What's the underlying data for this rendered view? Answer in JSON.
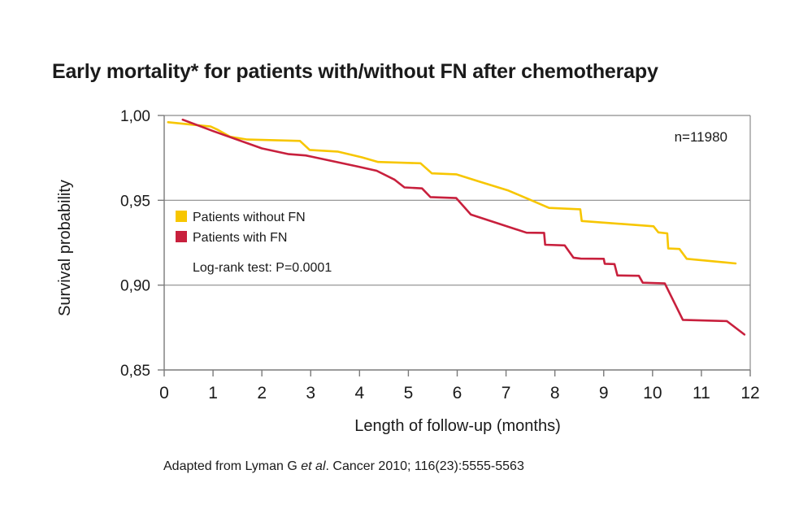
{
  "title": "Early mortality* for patients with/without FN after chemotherapy",
  "source": {
    "before": "Adapted from Lyman G ",
    "italic": "et al",
    "after": ". Cancer 2010; 116(23):5555-5563"
  },
  "colors": {
    "without_fn": "#f7c600",
    "with_fn": "#c8203d",
    "grid": "#8c8c8c",
    "axis": "#7a7a7a"
  },
  "chart_data": {
    "type": "line",
    "title": "Early mortality* for patients with/without FN after chemotherapy",
    "xlabel": "Length of follow-up (months)",
    "ylabel": "Survival probability",
    "xlim": [
      0,
      12
    ],
    "ylim": [
      0.85,
      1.0
    ],
    "x_ticks": [
      0,
      1,
      2,
      3,
      4,
      5,
      6,
      7,
      8,
      9,
      10,
      11,
      12
    ],
    "x_tick_labels": [
      "0",
      "1",
      "2",
      "3",
      "4",
      "5",
      "6",
      "7",
      "8",
      "9",
      "10",
      "11",
      "12"
    ],
    "y_ticks": [
      0.85,
      0.9,
      0.95,
      1.0
    ],
    "y_tick_labels": [
      "0,85",
      "0,90",
      "0,95",
      "1,00"
    ],
    "grid": "horizontal",
    "legend_position": "left",
    "annotations": {
      "n": "n=11980",
      "logrank": "Log-rank test: P=0.0001"
    },
    "series": [
      {
        "name": "Patients without FN",
        "color": "#f7c600",
        "points": [
          [
            0.08,
            0.996
          ],
          [
            0.95,
            0.9935
          ],
          [
            1.1,
            0.9915
          ],
          [
            1.35,
            0.9875
          ],
          [
            1.7,
            0.9858
          ],
          [
            2.78,
            0.985
          ],
          [
            2.98,
            0.9797
          ],
          [
            3.55,
            0.9787
          ],
          [
            4.05,
            0.9753
          ],
          [
            4.38,
            0.9726
          ],
          [
            5.25,
            0.9718
          ],
          [
            5.48,
            0.9659
          ],
          [
            5.98,
            0.9653
          ],
          [
            6.45,
            0.9611
          ],
          [
            7.05,
            0.9557
          ],
          [
            7.42,
            0.9512
          ],
          [
            7.88,
            0.9455
          ],
          [
            8.52,
            0.9447
          ],
          [
            8.55,
            0.9378
          ],
          [
            10.02,
            0.9347
          ],
          [
            10.12,
            0.9311
          ],
          [
            10.3,
            0.9305
          ],
          [
            10.32,
            0.9216
          ],
          [
            10.55,
            0.9213
          ],
          [
            10.7,
            0.9155
          ],
          [
            11.7,
            0.9128
          ]
        ]
      },
      {
        "name": "Patients with FN",
        "color": "#c8203d",
        "points": [
          [
            0.38,
            0.9975
          ],
          [
            1.0,
            0.9908
          ],
          [
            2.0,
            0.9806
          ],
          [
            2.55,
            0.9772
          ],
          [
            2.9,
            0.9764
          ],
          [
            3.95,
            0.97
          ],
          [
            4.35,
            0.9674
          ],
          [
            4.72,
            0.9621
          ],
          [
            4.92,
            0.9576
          ],
          [
            5.28,
            0.957
          ],
          [
            5.45,
            0.9519
          ],
          [
            5.98,
            0.9513
          ],
          [
            6.28,
            0.9416
          ],
          [
            7.42,
            0.9309
          ],
          [
            7.78,
            0.9308
          ],
          [
            7.8,
            0.9238
          ],
          [
            8.2,
            0.9234
          ],
          [
            8.38,
            0.9162
          ],
          [
            8.53,
            0.9156
          ],
          [
            9.0,
            0.9155
          ],
          [
            9.02,
            0.9126
          ],
          [
            9.22,
            0.9124
          ],
          [
            9.28,
            0.9057
          ],
          [
            9.72,
            0.9055
          ],
          [
            9.8,
            0.9014
          ],
          [
            10.25,
            0.901
          ],
          [
            10.62,
            0.8795
          ],
          [
            11.52,
            0.8788
          ],
          [
            11.88,
            0.8709
          ]
        ]
      }
    ]
  }
}
